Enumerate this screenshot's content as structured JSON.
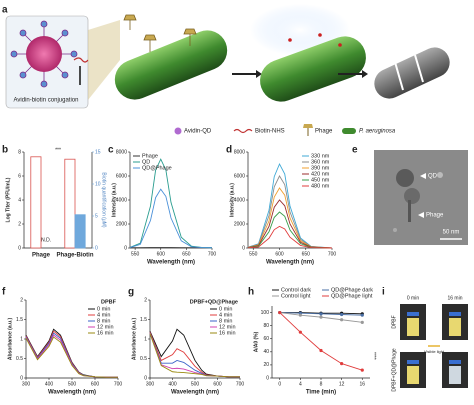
{
  "panel_labels": [
    "a",
    "b",
    "c",
    "d",
    "e",
    "f",
    "g",
    "h",
    "i"
  ],
  "schematic": {
    "inset_label": "Avidin-biotin conjugation",
    "legend": [
      "Avidin-QD",
      "Biotin-NHS",
      "Phage",
      "P. aeruginosa"
    ]
  },
  "tem": {
    "labels": [
      "QD",
      "Phage"
    ],
    "scale_bar": "50 nm"
  },
  "photos": {
    "times": [
      "0 min",
      "16 min"
    ],
    "rows": [
      "DPBF",
      "DPBF+QD@Phage"
    ],
    "arrow_label": "Visible light"
  },
  "chart_data": [
    {
      "type": "bar",
      "categories": [
        "Phage",
        "Phage-Biotin"
      ],
      "series": [
        {
          "name": "Log Titer",
          "color": "#d9534f",
          "values": [
            7.6,
            7.4
          ]
        },
        {
          "name": "Biotin",
          "color": "#6fa8dc",
          "axis": "y2",
          "values": [
            null,
            5.2
          ]
        }
      ],
      "ylabel": "Log Titer (PFU/mL)",
      "y2label": "Biotin quantification (μM)",
      "ylim": [
        0,
        8
      ],
      "yticks": [
        0,
        2,
        4,
        6,
        8
      ],
      "y2lim": [
        0,
        15
      ],
      "y2ticks": [
        0,
        5,
        10,
        15
      ],
      "annotations": [
        "N.D.",
        "***"
      ]
    },
    {
      "type": "line",
      "xlabel": "Wavelength (nm)",
      "ylabel": "Intensity (a.u.)",
      "x": [
        540,
        560,
        580,
        590,
        600,
        610,
        620,
        640,
        660,
        680,
        700
      ],
      "xlim": [
        540,
        700
      ],
      "xticks": [
        550,
        600,
        650,
        700
      ],
      "ylim": [
        0,
        8000
      ],
      "yticks": [
        0,
        2000,
        4000,
        6000,
        8000
      ],
      "legend": "upper left",
      "series": [
        {
          "name": "Phage",
          "color": "#333333",
          "values": [
            30,
            30,
            35,
            35,
            40,
            35,
            35,
            30,
            30,
            30,
            30
          ]
        },
        {
          "name": "QD",
          "color": "#2a9d8f",
          "values": [
            50,
            400,
            3500,
            6500,
            7400,
            6500,
            3800,
            900,
            150,
            50,
            20
          ]
        },
        {
          "name": "QD@Phage",
          "color": "#4a90d9",
          "values": [
            40,
            300,
            2300,
            4200,
            4900,
            4300,
            2500,
            600,
            100,
            40,
            15
          ]
        }
      ]
    },
    {
      "type": "line",
      "xlabel": "Wavelength (nm)",
      "ylabel": "Intensity (a.u.)",
      "x": [
        540,
        560,
        580,
        590,
        600,
        610,
        620,
        640,
        660,
        680,
        700
      ],
      "xlim": [
        540,
        700
      ],
      "xticks": [
        550,
        600,
        650,
        700
      ],
      "ylim": [
        0,
        8000
      ],
      "yticks": [
        0,
        2000,
        4000,
        6000,
        8000
      ],
      "legend": "upper right",
      "series": [
        {
          "name": "330 nm",
          "color": "#3fa9d6",
          "values": [
            70,
            350,
            3150,
            5950,
            7000,
            6160,
            3500,
            840,
            140,
            70,
            0
          ]
        },
        {
          "name": "360 nm",
          "color": "#8c8c8c",
          "values": [
            60,
            300,
            2700,
            5100,
            6000,
            5280,
            3000,
            720,
            120,
            60,
            0
          ]
        },
        {
          "name": "390 nm",
          "color": "#f0a030",
          "values": [
            50,
            250,
            2250,
            4250,
            5000,
            4400,
            2500,
            600,
            100,
            50,
            0
          ]
        },
        {
          "name": "420 nm",
          "color": "#9b2d2d",
          "values": [
            40,
            200,
            1800,
            3400,
            4000,
            3520,
            2000,
            480,
            80,
            40,
            0
          ]
        },
        {
          "name": "450 nm",
          "color": "#3a9d4a",
          "values": [
            30,
            150,
            1350,
            2550,
            3000,
            2640,
            1500,
            360,
            60,
            30,
            0
          ]
        },
        {
          "name": "480 nm",
          "color": "#e03c3c",
          "values": [
            18,
            90,
            810,
            1530,
            1800,
            1584,
            900,
            216,
            36,
            18,
            0
          ]
        }
      ]
    },
    {
      "type": "line",
      "title": "DPBF",
      "xlabel": "Wavelength (nm)",
      "ylabel": "Absorbance (a.u.)",
      "x": [
        300,
        350,
        400,
        420,
        450,
        500,
        530,
        550,
        600,
        650,
        700
      ],
      "xlim": [
        300,
        700
      ],
      "xticks": [
        300,
        400,
        500,
        600,
        700
      ],
      "ylim": [
        0,
        2
      ],
      "yticks": [
        0,
        0.5,
        1,
        1.5,
        2
      ],
      "legend": "upper right",
      "series": [
        {
          "name": "0 min",
          "color": "#111111",
          "values": [
            1.1,
            0.55,
            0.95,
            1.25,
            1.1,
            0.4,
            0.15,
            0.08,
            0.03,
            0.02,
            0.02
          ]
        },
        {
          "name": "4 min",
          "color": "#e03c3c",
          "values": [
            1.08,
            0.53,
            0.92,
            1.2,
            1.06,
            0.38,
            0.14,
            0.07,
            0.03,
            0.02,
            0.02
          ]
        },
        {
          "name": "8 min",
          "color": "#3a62c8",
          "values": [
            1.06,
            0.51,
            0.89,
            1.15,
            1.02,
            0.36,
            0.13,
            0.07,
            0.03,
            0.02,
            0.02
          ]
        },
        {
          "name": "12 min",
          "color": "#d040b0",
          "values": [
            1.04,
            0.49,
            0.85,
            1.1,
            0.97,
            0.34,
            0.12,
            0.06,
            0.03,
            0.02,
            0.02
          ]
        },
        {
          "name": "16 min",
          "color": "#9a8a10",
          "values": [
            1.02,
            0.47,
            0.81,
            1.05,
            0.92,
            0.32,
            0.11,
            0.06,
            0.03,
            0.02,
            0.02
          ]
        }
      ]
    },
    {
      "type": "line",
      "title": "DPBF+QD@Phage",
      "xlabel": "Wavelength (nm)",
      "ylabel": "Absorbance (a.u.)",
      "x": [
        300,
        350,
        400,
        420,
        450,
        500,
        530,
        550,
        600,
        650,
        700
      ],
      "xlim": [
        300,
        700
      ],
      "xticks": [
        300,
        400,
        500,
        600,
        700
      ],
      "ylim": [
        0,
        2
      ],
      "yticks": [
        0,
        0.5,
        1,
        1.5,
        2
      ],
      "legend": "upper right",
      "series": [
        {
          "name": "0 min",
          "color": "#111111",
          "values": [
            1.2,
            0.55,
            0.95,
            1.25,
            1.1,
            0.45,
            0.2,
            0.1,
            0.05,
            0.03,
            0.03
          ]
        },
        {
          "name": "4 min",
          "color": "#e03c3c",
          "values": [
            1.18,
            0.45,
            0.6,
            0.75,
            0.66,
            0.3,
            0.15,
            0.08,
            0.05,
            0.03,
            0.03
          ]
        },
        {
          "name": "8 min",
          "color": "#3a62c8",
          "values": [
            1.16,
            0.38,
            0.38,
            0.45,
            0.4,
            0.2,
            0.12,
            0.07,
            0.05,
            0.03,
            0.03
          ]
        },
        {
          "name": "12 min",
          "color": "#d040b0",
          "values": [
            1.15,
            0.34,
            0.24,
            0.25,
            0.23,
            0.14,
            0.1,
            0.06,
            0.05,
            0.03,
            0.03
          ]
        },
        {
          "name": "16 min",
          "color": "#9a8a10",
          "values": [
            1.14,
            0.32,
            0.16,
            0.15,
            0.14,
            0.11,
            0.09,
            0.06,
            0.05,
            0.03,
            0.03
          ]
        }
      ]
    },
    {
      "type": "line",
      "markers": true,
      "xlabel": "Time (min)",
      "ylabel": "A/A0 (%)",
      "x": [
        0,
        4,
        8,
        12,
        16
      ],
      "xlim": [
        -1.5,
        17.5
      ],
      "xticks": [
        0,
        4,
        8,
        12,
        16
      ],
      "ylim": [
        0,
        110
      ],
      "yticks": [
        0,
        20,
        40,
        60,
        80,
        100
      ],
      "legend": "above",
      "annotations": [
        "****"
      ],
      "series": [
        {
          "name": "Control dark",
          "color": "#111111",
          "values": [
            100,
            100,
            99,
            99,
            98
          ]
        },
        {
          "name": "QD@Phage dark",
          "color": "#4a6fa5",
          "values": [
            100,
            99,
            98,
            97,
            96
          ]
        },
        {
          "name": "Control light",
          "color": "#999999",
          "values": [
            100,
            96,
            93,
            89,
            85
          ]
        },
        {
          "name": "QD@Phage light",
          "color": "#e03c3c",
          "values": [
            100,
            70,
            42,
            22,
            12
          ]
        }
      ]
    }
  ]
}
